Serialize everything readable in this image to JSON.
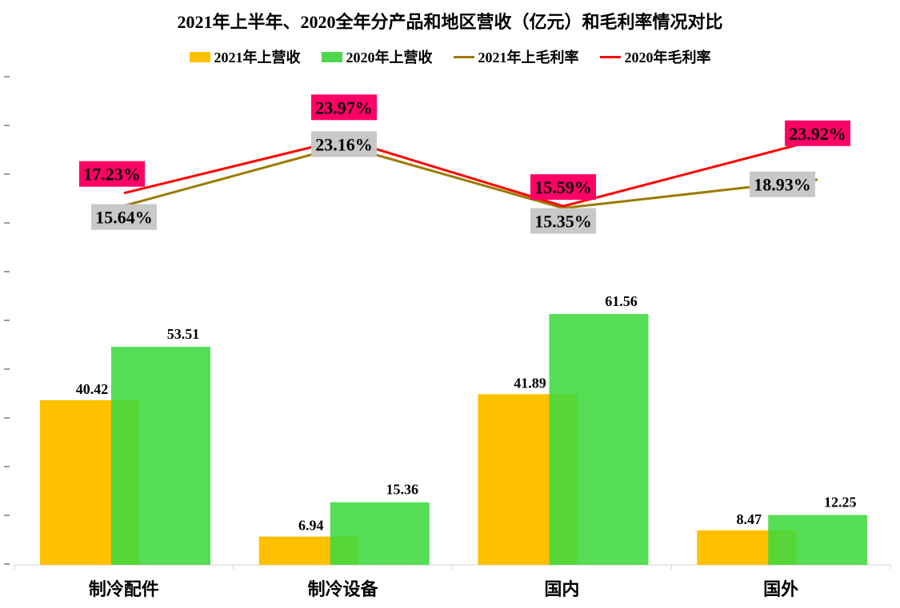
{
  "chart_data": {
    "type": "bar+line",
    "title": "2021年上半年、2020全年分产品和地区营收（亿元）和毛利率情况对比",
    "categories": [
      "制冷配件",
      "制冷设备",
      "国内",
      "国外"
    ],
    "series": [
      {
        "name": "2021年上营收",
        "kind": "bar",
        "color": "#FFC000",
        "values": [
          40.42,
          6.94,
          41.89,
          8.47
        ],
        "labels": [
          "40.42",
          "6.94",
          "41.89",
          "8.47"
        ]
      },
      {
        "name": "2020年上营收",
        "kind": "bar",
        "color": "#3FD83F",
        "values": [
          53.51,
          15.36,
          61.56,
          12.25
        ],
        "labels": [
          "53.51",
          "15.36",
          "61.56",
          "12.25"
        ]
      },
      {
        "name": "2021年上毛利率",
        "kind": "line",
        "color": "#9C7A00",
        "values": [
          15.64,
          23.16,
          15.35,
          18.93
        ],
        "labels": [
          "15.64%",
          "23.16%",
          "15.35%",
          "18.93%"
        ],
        "label_bg": "#C8C8C8"
      },
      {
        "name": "2020年毛利率",
        "kind": "line",
        "color": "#FF0000",
        "values": [
          17.23,
          23.97,
          15.59,
          23.92
        ],
        "labels": [
          "17.23%",
          "23.97%",
          "15.59%",
          "23.92%"
        ],
        "label_bg": "#FF0066"
      }
    ],
    "legend_position": "top",
    "grid": false
  }
}
